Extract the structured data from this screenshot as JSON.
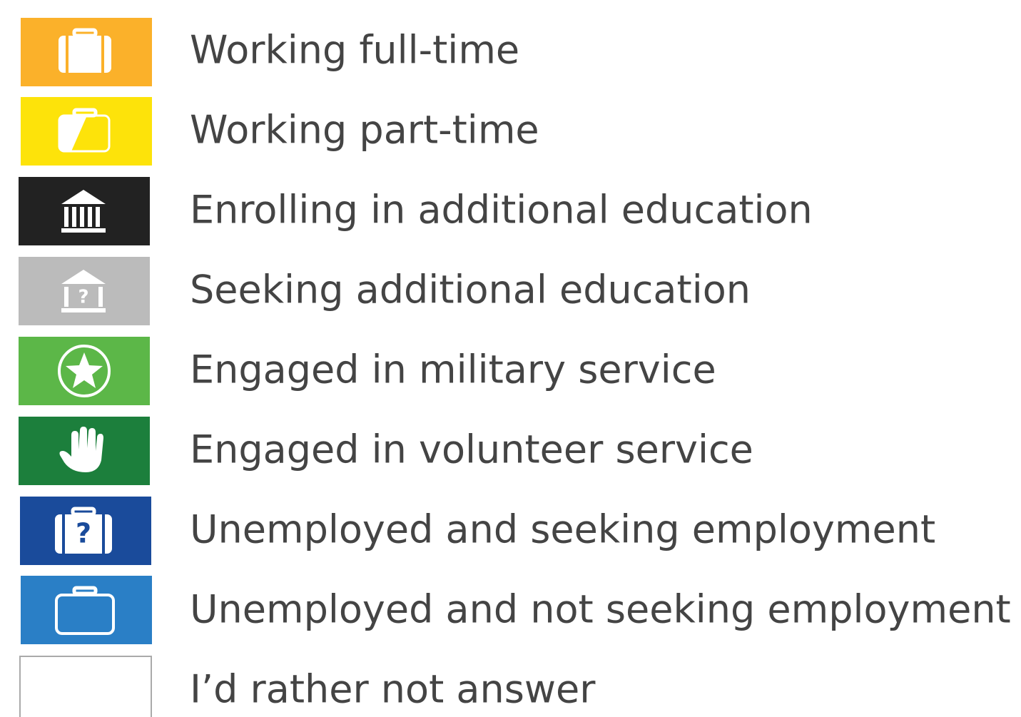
{
  "items": [
    {
      "label": "Working full-time"
    },
    {
      "label": "Working part-time"
    },
    {
      "label": "Enrolling in additional education"
    },
    {
      "label": "Seeking additional education"
    },
    {
      "label": "Engaged in military service"
    },
    {
      "label": "Engaged in volunteer service"
    },
    {
      "label": "Unemployed and seeking employment"
    },
    {
      "label": "Unemployed and not seeking employment"
    },
    {
      "label": "I’d rather not answer"
    }
  ]
}
